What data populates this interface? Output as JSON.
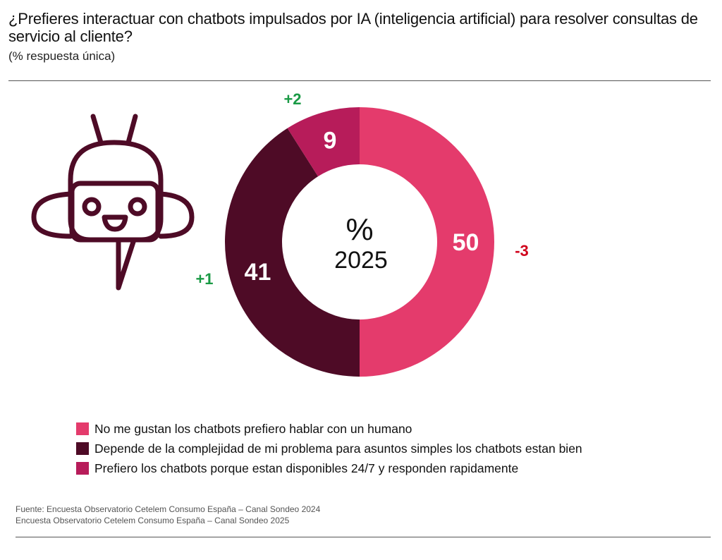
{
  "header": {
    "title": "¿Prefieres interactuar con chatbots impulsados por IA (inteligencia artificial) para resolver consultas de servicio al cliente?",
    "subtitle": "(% respuesta única)"
  },
  "chart_data": {
    "type": "pie",
    "variant": "donut",
    "title": "¿Prefieres interactuar con chatbots impulsados por IA (inteligencia artificial) para resolver consultas de servicio al cliente?",
    "subtitle": "(% respuesta única)",
    "center_label": {
      "symbol": "%",
      "year": "2025"
    },
    "slices": [
      {
        "label": "No me gustan los chatbots prefiero hablar con un humano",
        "value": 50,
        "change": "-3",
        "color": "#e43b6c",
        "change_color": "#d0021b"
      },
      {
        "label": "Depende de la complejidad de mi problema para asuntos simples los chatbots estan bien",
        "value": 41,
        "change": "+1",
        "color": "#4e0b26",
        "change_color": "#1a9a45"
      },
      {
        "label": "Prefiero los chatbots porque estan disponibles 24/7 y responden rapidamente",
        "value": 9,
        "change": "+2",
        "color": "#b71c5a",
        "change_color": "#1a9a45"
      }
    ],
    "legend_position": "bottom-left"
  },
  "icon": {
    "name": "chatbot-robot-icon",
    "color": "#4e0b26"
  },
  "footer": {
    "source_line1": "Fuente: Encuesta Observatorio Cetelem Consumo España – Canal Sondeo 2024",
    "source_line2": "Encuesta Observatorio Cetelem Consumo España – Canal Sondeo 2025"
  }
}
